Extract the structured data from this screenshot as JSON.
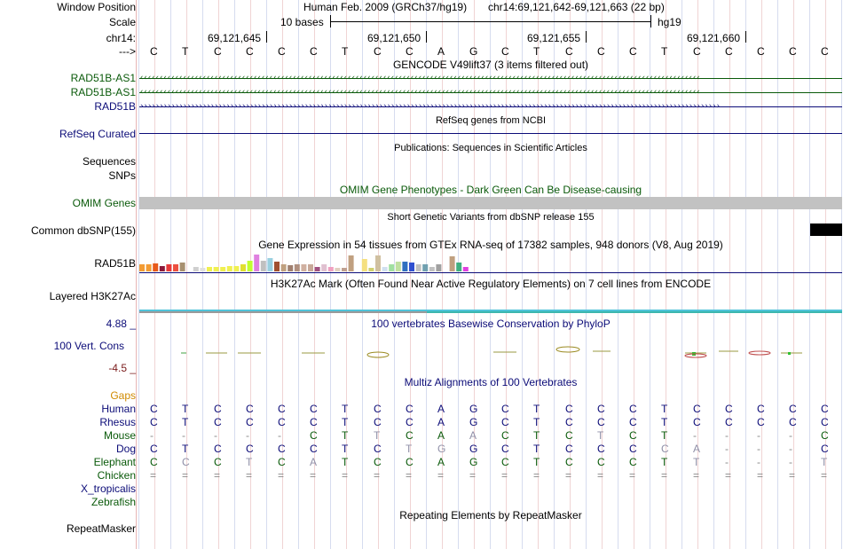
{
  "header": {
    "assembly": "Human Feb. 2009 (GRCh37/hg19)",
    "position": "chr14:69,121,642-69,121,663 (22 bp)",
    "scale_text": "10 bases",
    "scale_db": "hg19",
    "chrom_label": "chr14:",
    "coords": [
      "69,121,645",
      "69,121,650",
      "69,121,655",
      "69,121,660"
    ]
  },
  "labels": {
    "window_position": "Window Position",
    "scale": "Scale",
    "chrom": "chr14:",
    "arrow": "--->",
    "gencode_1": "RAD51B-AS1",
    "gencode_2": "RAD51B-AS1",
    "gencode_3": "RAD51B",
    "refseq": "RefSeq Curated",
    "sequences": "Sequences",
    "snps": "SNPs",
    "omim": "OMIM Genes",
    "dbsnp": "Common dbSNP(155)",
    "gtex": "RAD51B",
    "h3k27ac": "Layered H3K27Ac",
    "phylop_max": "4.88 _",
    "phylop": "100 Vert. Cons",
    "phylop_min": "-4.5 _",
    "gaps": "Gaps",
    "species": [
      "Human",
      "Rhesus",
      "Mouse",
      "Dog",
      "Elephant",
      "Chicken",
      "X_tropicalis",
      "Zebrafish"
    ],
    "repeatmasker": "RepeatMasker"
  },
  "tracks": {
    "gencode": "GENCODE V49lift37 (3 items filtered out)",
    "refseq": "RefSeq genes from NCBI",
    "publications": "Publications: Sequences in Scientific Articles",
    "omim": "OMIM Gene Phenotypes - Dark Green Can Be Disease-causing",
    "dbsnp": "Short Genetic Variants from dbSNP release 155",
    "gtex": "Gene Expression in 54 tissues from GTEx RNA-seq of 17382 samples, 948 donors (V8, Aug 2019)",
    "h3k27ac": "H3K27Ac Mark (Often Found Near Active Regulatory Elements) on 7 cell lines from ENCODE",
    "phylop": "100 vertebrates Basewise Conservation by PhyloP",
    "multiz": "Multiz Alignments of 100 Vertebrates",
    "repeatmasker": "Repeating Elements by RepeatMasker"
  },
  "sequence": [
    "C",
    "T",
    "C",
    "C",
    "C",
    "C",
    "T",
    "C",
    "C",
    "A",
    "G",
    "C",
    "T",
    "C",
    "C",
    "C",
    "T",
    "C",
    "C",
    "C",
    "C",
    "C"
  ],
  "alignments": {
    "Human": [
      "C",
      "T",
      "C",
      "C",
      "C",
      "C",
      "T",
      "C",
      "C",
      "A",
      "G",
      "C",
      "T",
      "C",
      "C",
      "C",
      "T",
      "C",
      "C",
      "C",
      "C",
      "C"
    ],
    "Rhesus": [
      "C",
      "T",
      "C",
      "C",
      "C",
      "C",
      "T",
      "C",
      "C",
      "A",
      "G",
      "C",
      "T",
      "C",
      "C",
      "C",
      "T",
      "C",
      "C",
      "C",
      "C",
      "C"
    ],
    "Mouse": [
      "-",
      "-",
      "-",
      "-",
      "-",
      "C",
      "T",
      "T",
      "C",
      "A",
      "A",
      "C",
      "T",
      "C",
      "T",
      "C",
      "T",
      "-",
      "-",
      "-",
      "-",
      "C"
    ],
    "Dog": [
      "C",
      "T",
      "C",
      "C",
      "C",
      "C",
      "T",
      "C",
      "T",
      "G",
      "G",
      "C",
      "T",
      "C",
      "C",
      "C",
      "C",
      "A",
      "-",
      "-",
      "-",
      "C"
    ],
    "Elephant": [
      "C",
      "C",
      "C",
      "T",
      "C",
      "A",
      "T",
      "C",
      "C",
      "A",
      "G",
      "C",
      "T",
      "C",
      "C",
      "C",
      "T",
      "T",
      "-",
      "-",
      "-",
      "T"
    ],
    "Chicken": [
      "=",
      "=",
      "=",
      "=",
      "=",
      "=",
      "=",
      "=",
      "=",
      "=",
      "=",
      "=",
      "=",
      "=",
      "=",
      "=",
      "=",
      "=",
      "=",
      "=",
      "=",
      "="
    ]
  },
  "alignment_faint": {
    "Mouse": [
      0,
      0,
      0,
      0,
      0,
      0,
      0,
      1,
      0,
      0,
      1,
      0,
      0,
      0,
      1,
      0,
      0,
      0,
      0,
      0,
      0,
      0
    ],
    "Dog": [
      0,
      0,
      0,
      0,
      0,
      0,
      0,
      0,
      1,
      1,
      0,
      0,
      0,
      0,
      0,
      0,
      1,
      1,
      0,
      0,
      0,
      0
    ],
    "Elephant": [
      0,
      1,
      0,
      1,
      0,
      1,
      0,
      0,
      0,
      0,
      0,
      0,
      0,
      0,
      0,
      0,
      0,
      1,
      0,
      0,
      0,
      1
    ]
  },
  "colors": {
    "label_blue": "#0c0c78",
    "label_green": "#0a5a0a",
    "gaps_orange": "#d08a00",
    "phylop_max": "#0c0c78",
    "phylop_min": "#7a1a1a",
    "omim_bar": "#c2c2c2",
    "h3k27ac_line": "#4fc3d9"
  },
  "gtex_bars": [
    {
      "c": "#f39c34",
      "h": 8
    },
    {
      "c": "#f39c34",
      "h": 8
    },
    {
      "c": "#e85a1a",
      "h": 9
    },
    {
      "c": "#8b1a3a",
      "h": 6
    },
    {
      "c": "#e83a3a",
      "h": 8
    },
    {
      "c": "#ec5040",
      "h": 8
    },
    {
      "c": "#a89070",
      "h": 10
    },
    {
      "c": "#fff",
      "h": 0
    },
    {
      "c": "#cfcfcf",
      "h": 5
    },
    {
      "c": "#e0e0e0",
      "h": 4
    },
    {
      "c": "#f0f050",
      "h": 5
    },
    {
      "c": "#f0f050",
      "h": 5
    },
    {
      "c": "#f0f050",
      "h": 5
    },
    {
      "c": "#f0f050",
      "h": 6
    },
    {
      "c": "#f0f050",
      "h": 6
    },
    {
      "c": "#e0e030",
      "h": 8
    },
    {
      "c": "#c0ff30",
      "h": 12
    },
    {
      "c": "#e080e0",
      "h": 19
    },
    {
      "c": "#c0c0c0",
      "h": 12
    },
    {
      "c": "#99d0e0",
      "h": 15
    },
    {
      "c": "#a05030",
      "h": 11
    },
    {
      "c": "#c0a080",
      "h": 8
    },
    {
      "c": "#a08070",
      "h": 7
    },
    {
      "c": "#b09080",
      "h": 8
    },
    {
      "c": "#d0b0a0",
      "h": 8
    },
    {
      "c": "#c8a898",
      "h": 8
    },
    {
      "c": "#a05080",
      "h": 5
    },
    {
      "c": "#e0c0d0",
      "h": 8
    },
    {
      "c": "#f0a0c0",
      "h": 5
    },
    {
      "c": "#e0d0c0",
      "h": 4
    },
    {
      "c": "#c0a090",
      "h": 4
    },
    {
      "c": "#c0a080",
      "h": 18
    },
    {
      "c": "#fff",
      "h": 0
    },
    {
      "c": "#f5e080",
      "h": 14
    },
    {
      "c": "#d0d070",
      "h": 4
    },
    {
      "c": "#d0c0a0",
      "h": 18
    },
    {
      "c": "#d0e0f0",
      "h": 5
    },
    {
      "c": "#a0e0a0",
      "h": 8
    },
    {
      "c": "#c0e0a0",
      "h": 11
    },
    {
      "c": "#3070c0",
      "h": 11
    },
    {
      "c": "#3050d0",
      "h": 10
    },
    {
      "c": "#c0c0c0",
      "h": 8
    },
    {
      "c": "#70a0b0",
      "h": 8
    },
    {
      "c": "#c0c0c0",
      "h": 5
    },
    {
      "c": "#a0a0a0",
      "h": 8
    },
    {
      "c": "#fff",
      "h": 0
    },
    {
      "c": "#c0a080",
      "h": 17
    },
    {
      "c": "#40b080",
      "h": 10
    },
    {
      "c": "#e040e0",
      "h": 5
    }
  ]
}
